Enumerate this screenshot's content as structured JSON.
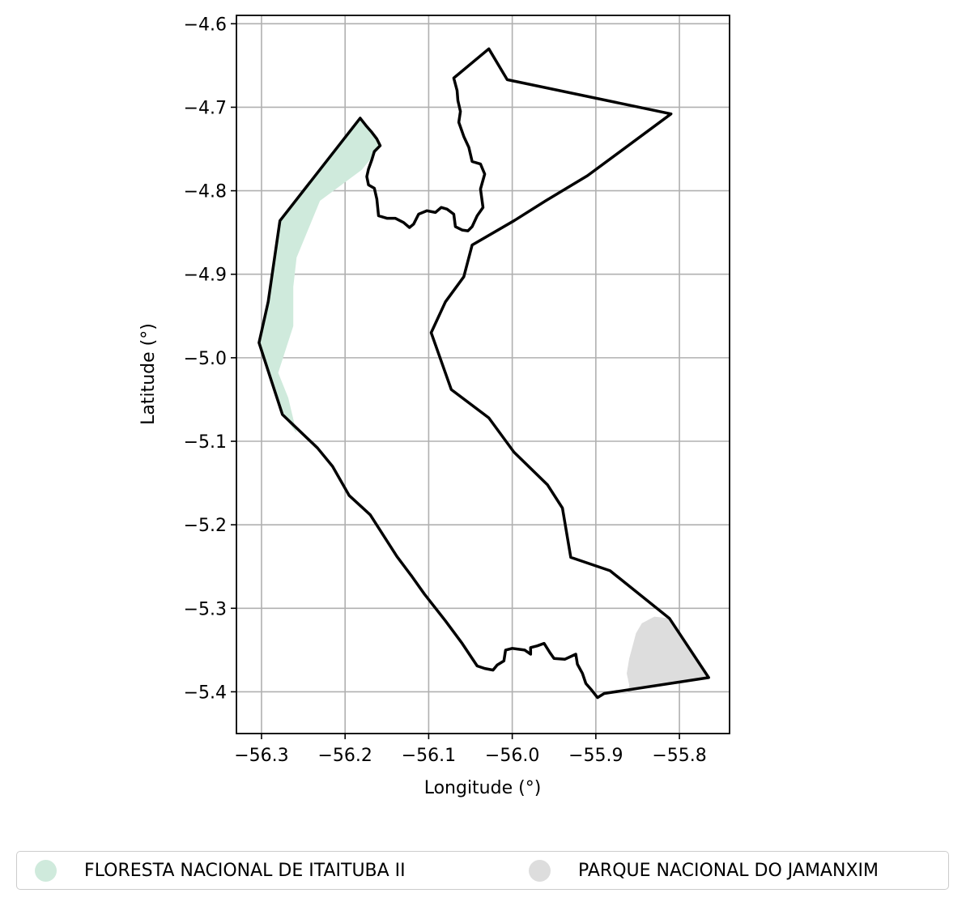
{
  "chart_data": {
    "type": "map",
    "xlabel": "Longitude (°)",
    "ylabel": "Latitude (°)",
    "xlim": [
      -56.33,
      -55.74
    ],
    "ylim": [
      -5.45,
      -4.59
    ],
    "xticks": [
      {
        "value": -56.3,
        "label": "−56.3"
      },
      {
        "value": -56.2,
        "label": "−56.2"
      },
      {
        "value": -56.1,
        "label": "−56.1"
      },
      {
        "value": -56.0,
        "label": "−56.0"
      },
      {
        "value": -55.9,
        "label": "−55.9"
      },
      {
        "value": -55.8,
        "label": "−55.8"
      }
    ],
    "yticks": [
      {
        "value": -4.6,
        "label": "−4.6"
      },
      {
        "value": -4.7,
        "label": "−4.7"
      },
      {
        "value": -4.8,
        "label": "−4.8"
      },
      {
        "value": -4.9,
        "label": "−4.9"
      },
      {
        "value": -5.0,
        "label": "−5.0"
      },
      {
        "value": -5.1,
        "label": "−5.1"
      },
      {
        "value": -5.2,
        "label": "−5.2"
      },
      {
        "value": -5.3,
        "label": "−5.3"
      },
      {
        "value": -5.4,
        "label": "−5.4"
      }
    ],
    "grid": true,
    "legend_position": "bottom",
    "boundary": {
      "color": "#000000",
      "coords": [
        [
          -56.028,
          -4.63
        ],
        [
          -56.006,
          -4.667
        ],
        [
          -55.81,
          -4.708
        ],
        [
          -55.91,
          -4.782
        ],
        [
          -55.96,
          -4.812
        ],
        [
          -55.998,
          -4.836
        ],
        [
          -56.048,
          -4.865
        ],
        [
          -56.058,
          -4.903
        ],
        [
          -56.08,
          -4.933
        ],
        [
          -56.097,
          -4.97
        ],
        [
          -56.073,
          -5.038
        ],
        [
          -56.028,
          -5.072
        ],
        [
          -55.998,
          -5.113
        ],
        [
          -55.958,
          -5.152
        ],
        [
          -55.94,
          -5.18
        ],
        [
          -55.93,
          -5.239
        ],
        [
          -55.883,
          -5.255
        ],
        [
          -55.812,
          -5.312
        ],
        [
          -55.765,
          -5.383
        ],
        [
          -55.89,
          -5.402
        ],
        [
          -55.898,
          -5.407
        ],
        [
          -55.905,
          -5.398
        ],
        [
          -55.912,
          -5.39
        ],
        [
          -55.916,
          -5.378
        ],
        [
          -55.922,
          -5.367
        ],
        [
          -55.924,
          -5.355
        ],
        [
          -55.937,
          -5.361
        ],
        [
          -55.95,
          -5.36
        ],
        [
          -55.955,
          -5.353
        ],
        [
          -55.962,
          -5.342
        ],
        [
          -55.97,
          -5.345
        ],
        [
          -55.978,
          -5.347
        ],
        [
          -55.978,
          -5.355
        ],
        [
          -55.985,
          -5.35
        ],
        [
          -56.0,
          -5.348
        ],
        [
          -56.008,
          -5.35
        ],
        [
          -56.01,
          -5.363
        ],
        [
          -56.018,
          -5.368
        ],
        [
          -56.023,
          -5.374
        ],
        [
          -56.033,
          -5.372
        ],
        [
          -56.042,
          -5.369
        ],
        [
          -56.06,
          -5.342
        ],
        [
          -56.08,
          -5.315
        ],
        [
          -56.105,
          -5.283
        ],
        [
          -56.12,
          -5.262
        ],
        [
          -56.138,
          -5.238
        ],
        [
          -56.17,
          -5.188
        ],
        [
          -56.195,
          -5.165
        ],
        [
          -56.215,
          -5.13
        ],
        [
          -56.233,
          -5.108
        ],
        [
          -56.275,
          -5.068
        ],
        [
          -56.29,
          -5.022
        ],
        [
          -56.303,
          -4.982
        ],
        [
          -56.292,
          -4.933
        ],
        [
          -56.278,
          -4.836
        ],
        [
          -56.182,
          -4.713
        ],
        [
          -56.175,
          -4.722
        ],
        [
          -56.168,
          -4.73
        ],
        [
          -56.162,
          -4.738
        ],
        [
          -56.158,
          -4.746
        ],
        [
          -56.165,
          -4.753
        ],
        [
          -56.168,
          -4.763
        ],
        [
          -56.172,
          -4.774
        ],
        [
          -56.174,
          -4.783
        ],
        [
          -56.172,
          -4.793
        ],
        [
          -56.165,
          -4.797
        ],
        [
          -56.162,
          -4.81
        ],
        [
          -56.16,
          -4.83
        ],
        [
          -56.15,
          -4.833
        ],
        [
          -56.14,
          -4.833
        ],
        [
          -56.13,
          -4.838
        ],
        [
          -56.123,
          -4.844
        ],
        [
          -56.118,
          -4.84
        ],
        [
          -56.112,
          -4.828
        ],
        [
          -56.102,
          -4.824
        ],
        [
          -56.092,
          -4.826
        ],
        [
          -56.085,
          -4.82
        ],
        [
          -56.078,
          -4.822
        ],
        [
          -56.07,
          -4.828
        ],
        [
          -56.068,
          -4.843
        ],
        [
          -56.06,
          -4.847
        ],
        [
          -56.053,
          -4.848
        ],
        [
          -56.048,
          -4.843
        ],
        [
          -56.042,
          -4.83
        ],
        [
          -56.035,
          -4.82
        ],
        [
          -56.038,
          -4.798
        ],
        [
          -56.033,
          -4.78
        ],
        [
          -56.038,
          -4.768
        ],
        [
          -56.048,
          -4.765
        ],
        [
          -56.052,
          -4.748
        ],
        [
          -56.058,
          -4.735
        ],
        [
          -56.064,
          -4.718
        ],
        [
          -56.062,
          -4.705
        ],
        [
          -56.065,
          -4.692
        ],
        [
          -56.066,
          -4.68
        ],
        [
          -56.07,
          -4.665
        ],
        [
          -56.028,
          -4.63
        ]
      ]
    },
    "areas": [
      {
        "name": "FLORESTA NACIONAL DE ITAITUBA II",
        "color": "#cfeadc",
        "coords": [
          [
            -56.182,
            -4.713
          ],
          [
            -56.162,
            -4.736
          ],
          [
            -56.158,
            -4.748
          ],
          [
            -56.18,
            -4.775
          ],
          [
            -56.23,
            -4.812
          ],
          [
            -56.258,
            -4.88
          ],
          [
            -56.262,
            -4.915
          ],
          [
            -56.262,
            -4.962
          ],
          [
            -56.28,
            -5.018
          ],
          [
            -56.268,
            -5.048
          ],
          [
            -56.258,
            -5.09
          ],
          [
            -56.275,
            -5.068
          ],
          [
            -56.29,
            -5.022
          ],
          [
            -56.303,
            -4.982
          ],
          [
            -56.292,
            -4.933
          ],
          [
            -56.278,
            -4.836
          ],
          [
            -56.182,
            -4.713
          ]
        ]
      },
      {
        "name": "PARQUE NACIONAL DO JAMANXIM",
        "color": "#dddddd",
        "coords": [
          [
            -55.812,
            -5.312
          ],
          [
            -55.83,
            -5.31
          ],
          [
            -55.845,
            -5.318
          ],
          [
            -55.852,
            -5.33
          ],
          [
            -55.856,
            -5.345
          ],
          [
            -55.86,
            -5.36
          ],
          [
            -55.863,
            -5.378
          ],
          [
            -55.86,
            -5.392
          ],
          [
            -55.862,
            -5.402
          ],
          [
            -55.89,
            -5.402
          ],
          [
            -55.765,
            -5.383
          ],
          [
            -55.812,
            -5.312
          ]
        ]
      }
    ]
  }
}
